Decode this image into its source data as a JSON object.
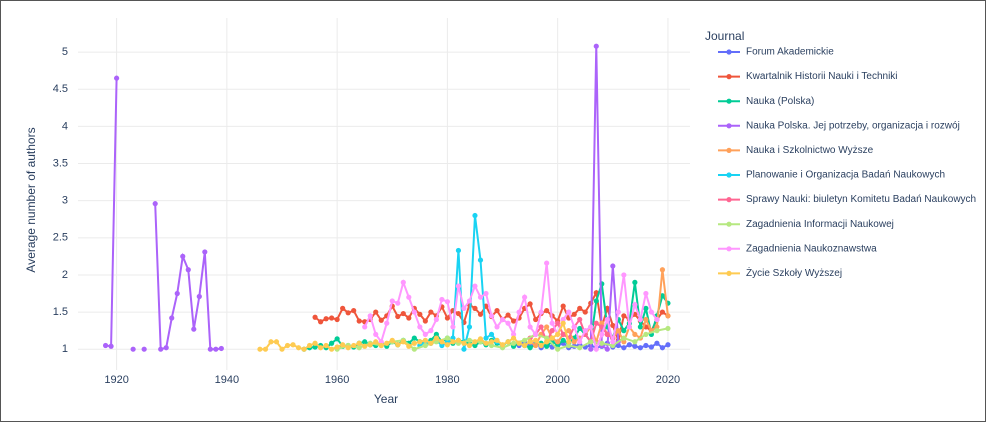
{
  "chart_data": {
    "type": "line",
    "xlabel": "Year",
    "ylabel": "Average number of authors",
    "legend_title": "Journal",
    "xlim": [
      1913,
      2024
    ],
    "xticks": [
      1920,
      1940,
      1960,
      1980,
      2000,
      2020
    ],
    "ylim": [
      0.72,
      5.46
    ],
    "yticks": [
      1,
      1.5,
      2,
      2.5,
      3,
      3.5,
      4,
      4.5,
      5
    ],
    "grid": true,
    "legend": "right",
    "series": [
      {
        "name": "Forum Akademickie",
        "color": "#636efa",
        "x": [
          1993,
          1994,
          1995,
          1996,
          1997,
          1998,
          1999,
          2000,
          2001,
          2002,
          2003,
          2004,
          2005,
          2006,
          2007,
          2008,
          2009,
          2010,
          2011,
          2012,
          2013,
          2014,
          2015,
          2016,
          2017,
          2018,
          2019,
          2020
        ],
        "values": [
          1.05,
          1.1,
          1.04,
          1.08,
          1.02,
          1.06,
          1.03,
          1.05,
          1.08,
          1.02,
          1.04,
          1.06,
          1.03,
          1.05,
          1.02,
          1.04,
          1.08,
          1.03,
          1.05,
          1.02,
          1.06,
          1.04,
          1.02,
          1.05,
          1.03,
          1.08,
          1.02,
          1.06
        ]
      },
      {
        "name": "Kwartalnik Historii Nauki i Techniki",
        "color": "#EF553B",
        "x": [
          1956,
          1957,
          1958,
          1959,
          1960,
          1961,
          1962,
          1963,
          1964,
          1965,
          1966,
          1967,
          1968,
          1969,
          1970,
          1971,
          1972,
          1973,
          1974,
          1975,
          1976,
          1977,
          1978,
          1979,
          1980,
          1981,
          1982,
          1983,
          1984,
          1985,
          1986,
          1987,
          1988,
          1989,
          1990,
          1991,
          1992,
          1993,
          1994,
          1995,
          1996,
          1997,
          1998,
          1999,
          2000,
          2001,
          2002,
          2003,
          2004,
          2005,
          2006,
          2007,
          2008,
          2009,
          2010,
          2011,
          2012,
          2013,
          2014,
          2015,
          2016,
          2017,
          2018,
          2019,
          2020
        ],
        "values": [
          1.43,
          1.37,
          1.41,
          1.42,
          1.4,
          1.55,
          1.49,
          1.52,
          1.38,
          1.37,
          1.4,
          1.5,
          1.39,
          1.45,
          1.58,
          1.44,
          1.48,
          1.42,
          1.55,
          1.47,
          1.38,
          1.5,
          1.45,
          1.57,
          1.42,
          1.52,
          1.48,
          1.36,
          1.6,
          1.55,
          1.47,
          1.58,
          1.44,
          1.52,
          1.4,
          1.46,
          1.38,
          1.42,
          1.55,
          1.61,
          1.4,
          1.48,
          1.52,
          1.45,
          1.38,
          1.58,
          1.42,
          1.47,
          1.55,
          1.5,
          1.62,
          1.76,
          1.3,
          1.55,
          1.32,
          1.12,
          1.45,
          1.4,
          1.47,
          1.38,
          1.3,
          1.25,
          1.4,
          1.5,
          1.45
        ]
      },
      {
        "name": "Nauka (Polska)",
        "color": "#00cc96",
        "x": [
          1954,
          1955,
          1956,
          1957,
          1958,
          1959,
          1960,
          1961,
          1962,
          1963,
          1964,
          1965,
          1966,
          1967,
          1968,
          1969,
          1970,
          1971,
          1972,
          1973,
          1974,
          1975,
          1976,
          1977,
          1978,
          1979,
          1980,
          1981,
          1982,
          1983,
          1984,
          1985,
          1986,
          1987,
          1988,
          1989,
          1990,
          1991,
          1992,
          1993,
          1994,
          1995,
          1996,
          1997,
          1998,
          1999,
          2000,
          2001,
          2002,
          2003,
          2004,
          2005,
          2006,
          2007,
          2008,
          2009,
          2010,
          2011,
          2012,
          2013,
          2014,
          2015,
          2016,
          2017,
          2018,
          2019,
          2020
        ],
        "values": [
          1,
          1.02,
          1.03,
          1.05,
          1.02,
          1.08,
          1.14,
          1.04,
          1.05,
          1.03,
          1.08,
          1.1,
          1.06,
          1.05,
          1.08,
          1.04,
          1.1,
          1.06,
          1.12,
          1.08,
          1.15,
          1.1,
          1.08,
          1.12,
          1.2,
          1.1,
          1.15,
          1.08,
          1.12,
          1.1,
          1.08,
          1.05,
          1.1,
          1.06,
          1.12,
          1.08,
          1.05,
          1.1,
          1.04,
          1.08,
          1.05,
          1.02,
          1.06,
          1.08,
          1.04,
          1.1,
          1.06,
          1.12,
          1.08,
          1.15,
          1.28,
          1.2,
          1.1,
          1.65,
          1.88,
          1.3,
          1.15,
          1.4,
          1.25,
          1.35,
          1.9,
          1.3,
          1.55,
          1.2,
          1.45,
          1.72,
          1.62
        ]
      },
      {
        "name": "Nauka Polska. Jej potrzeby, organizacja i rozwój",
        "color": "#ab63fa",
        "x": [
          1918,
          1919,
          1920,
          1921,
          1922,
          1923,
          1924,
          1925,
          1926,
          1927,
          1928,
          1929,
          1930,
          1931,
          1932,
          1933,
          1934,
          1935,
          1936,
          1937,
          1938,
          1939,
          1940,
          2006,
          2007,
          2008,
          2009,
          2010,
          2011
        ],
        "values": [
          1.05,
          1.04,
          4.65,
          null,
          null,
          1,
          null,
          1,
          null,
          2.96,
          1,
          1.02,
          1.42,
          1.75,
          2.25,
          2.07,
          1.27,
          1.71,
          2.31,
          1,
          1,
          1.01,
          null,
          1,
          5.08,
          1.05,
          1,
          2.12,
          1.1
        ]
      },
      {
        "name": "Nauka i Szkolnictwo Wyższe",
        "color": "#FFA15A",
        "x": [
          1995,
          1996,
          1997,
          1998,
          1999,
          2000,
          2001,
          2002,
          2003,
          2004,
          2005,
          2006,
          2007,
          2008,
          2009,
          2010,
          2011,
          2012,
          2013,
          2014,
          2015,
          2016,
          2017,
          2018,
          2019,
          2020
        ],
        "values": [
          1.1,
          1.05,
          1.2,
          1.3,
          1.15,
          1.1,
          1.2,
          1.25,
          1.1,
          1.15,
          1.2,
          1.3,
          1.1,
          1.35,
          1.2,
          1.15,
          1.25,
          1.1,
          1.3,
          1.2,
          1.15,
          1.4,
          1.25,
          1.3,
          2.07,
          1.45
        ]
      },
      {
        "name": "Planowanie i Organizacja Badań Naukowych",
        "color": "#19d3f3",
        "x": [
          1975,
          1976,
          1977,
          1978,
          1979,
          1980,
          1981,
          1982,
          1983,
          1984,
          1985,
          1986,
          1987,
          1988,
          1989,
          1990
        ],
        "values": [
          1.05,
          1.1,
          1.08,
          1.12,
          1.05,
          1.1,
          1.15,
          2.33,
          1.0,
          1.3,
          2.8,
          2.2,
          1.15,
          1.2,
          1.1,
          1.05
        ]
      },
      {
        "name": "Sprawy Nauki: biuletyn Komitetu Badań Naukowych",
        "color": "#FF6692",
        "x": [
          1995,
          1996,
          1997,
          1998,
          1999,
          2000,
          2001,
          2002,
          2003,
          2004,
          2005,
          2006,
          2007,
          2008,
          2009,
          2010
        ],
        "values": [
          1.15,
          1.2,
          1.3,
          1.1,
          1.25,
          1.35,
          1.2,
          1.15,
          1.3,
          1.4,
          1.2,
          1.1,
          1.35,
          1.3,
          1.2,
          1.15
        ]
      },
      {
        "name": "Zagadnienia Informacji Naukowej",
        "color": "#B6E880",
        "x": [
          1960,
          1962,
          1964,
          1966,
          1968,
          1970,
          1972,
          1974,
          1976,
          1978,
          1980,
          1982,
          1984,
          1986,
          1988,
          1990,
          1992,
          1994,
          1996,
          1998,
          2000,
          2002,
          2004,
          2006,
          2008,
          2010,
          2012,
          2014,
          2016,
          2018,
          2020
        ],
        "values": [
          1.0,
          1.05,
          1.02,
          1.08,
          1.05,
          1.1,
          1.12,
          1.0,
          1.05,
          1.1,
          1.15,
          1.08,
          1.12,
          1.1,
          1.05,
          1.02,
          1.08,
          1.12,
          1.2,
          1.15,
          1.0,
          1.05,
          1.02,
          1.1,
          1.08,
          1.05,
          1.15,
          1.1,
          1.2,
          1.25,
          1.28
        ]
      },
      {
        "name": "Zagadnienia Naukoznawstwa",
        "color": "#FF97FF",
        "x": [
          1965,
          1966,
          1967,
          1968,
          1969,
          1970,
          1971,
          1972,
          1973,
          1974,
          1975,
          1976,
          1977,
          1978,
          1979,
          1980,
          1981,
          1982,
          1983,
          1984,
          1985,
          1986,
          1987,
          1988,
          1989,
          1990,
          1991,
          1992,
          1993,
          1994,
          1995,
          1996,
          1997,
          1998,
          1999,
          2000,
          2001,
          2002,
          2003,
          2004,
          2005,
          2006,
          2007,
          2008,
          2009,
          2010,
          2011,
          2012,
          2013,
          2014,
          2015,
          2016,
          2017,
          2018
        ],
        "values": [
          1.3,
          1.45,
          1.2,
          1.1,
          1.35,
          1.65,
          1.62,
          1.9,
          1.7,
          1.5,
          1.3,
          1.2,
          1.25,
          1.4,
          1.67,
          1.64,
          1.3,
          1.85,
          1.55,
          1.65,
          1.85,
          1.7,
          1.75,
          1.45,
          1.3,
          1.4,
          1.35,
          1.2,
          1.5,
          1.7,
          1.3,
          1.2,
          1.5,
          2.16,
          1.35,
          1.2,
          1.4,
          1.5,
          1.3,
          1.1,
          1.25,
          1.3,
          1.0,
          1.2,
          1.4,
          1.1,
          1.5,
          2.0,
          1.3,
          1.6,
          1.4,
          1.75,
          1.5,
          1.4
        ]
      },
      {
        "name": "Życie Szkoły Wyższej",
        "color": "#FECB52",
        "x": [
          1946,
          1947,
          1948,
          1949,
          1950,
          1951,
          1952,
          1953,
          1954,
          1955,
          1956,
          1957,
          1958,
          1959,
          1960,
          1961,
          1962,
          1963,
          1964,
          1965,
          1966,
          1967,
          1968,
          1969,
          1970,
          1971,
          1972,
          1973,
          1974,
          1975,
          1976,
          1977,
          1978,
          1979,
          1980,
          1981,
          1982,
          1983,
          1984,
          1985,
          1986,
          1987,
          1988,
          1989,
          1990,
          1991,
          1992,
          1993,
          1994,
          1995,
          1996,
          1997,
          1998,
          1999,
          2000,
          2001,
          2002
        ],
        "values": [
          1,
          1,
          1.1,
          1.1,
          1,
          1.05,
          1.06,
          1.02,
          1,
          1.05,
          1.08,
          1.02,
          1.05,
          1,
          1.03,
          1.06,
          1.02,
          1.05,
          1.08,
          1.04,
          1.06,
          1.1,
          1.05,
          1.08,
          1.12,
          1.06,
          1.1,
          1.04,
          1.08,
          1.1,
          1.12,
          1.08,
          1.15,
          1.1,
          1.06,
          1.1,
          1.12,
          1.08,
          1.05,
          1.1,
          1.14,
          1.08,
          1.1,
          1.12,
          1.06,
          1.1,
          1.15,
          1.08,
          1.05,
          1.1,
          1.12,
          1.05,
          1.1,
          1.15,
          1.2,
          1.35,
          1.1
        ]
      }
    ]
  }
}
